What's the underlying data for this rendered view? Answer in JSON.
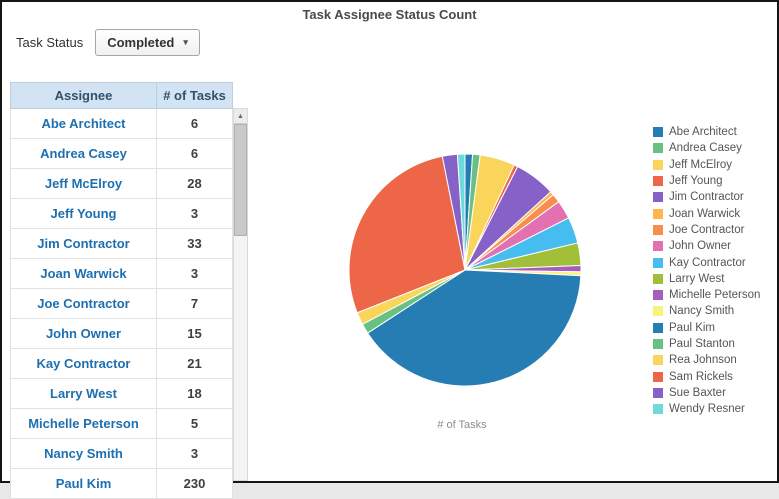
{
  "title": "Task Assignee Status Count",
  "filter": {
    "label": "Task Status",
    "value": "Completed"
  },
  "icons": {
    "dropdown_caret": "▾",
    "scrollbar_up": "▲"
  },
  "table": {
    "columns": [
      "Assignee",
      "# of Tasks"
    ],
    "rows": [
      [
        "Abe Architect",
        "6"
      ],
      [
        "Andrea Casey",
        "6"
      ],
      [
        "Jeff McElroy",
        "28"
      ],
      [
        "Jeff Young",
        "3"
      ],
      [
        "Jim Contractor",
        "33"
      ],
      [
        "Joan Warwick",
        "3"
      ],
      [
        "Joe Contractor",
        "7"
      ],
      [
        "John Owner",
        "15"
      ],
      [
        "Kay Contractor",
        "21"
      ],
      [
        "Larry West",
        "18"
      ],
      [
        "Michelle Peterson",
        "5"
      ],
      [
        "Nancy Smith",
        "3"
      ],
      [
        "Paul Kim",
        "230"
      ]
    ]
  },
  "chart_data": {
    "type": "pie",
    "title": "# of Tasks",
    "legend_position": "right",
    "slices": [
      {
        "label": "Abe Architect",
        "value": 6,
        "color": "#267db3"
      },
      {
        "label": "Andrea Casey",
        "value": 6,
        "color": "#68c182"
      },
      {
        "label": "Jeff McElroy",
        "value": 28,
        "color": "#fad55c"
      },
      {
        "label": "Jeff Young",
        "value": 3,
        "color": "#ed6647"
      },
      {
        "label": "Jim Contractor",
        "value": 33,
        "color": "#8561c8"
      },
      {
        "label": "Joan Warwick",
        "value": 3,
        "color": "#ffb54d"
      },
      {
        "label": "Joe Contractor",
        "value": 7,
        "color": "#f78e4e"
      },
      {
        "label": "John Owner",
        "value": 15,
        "color": "#e371b2"
      },
      {
        "label": "Kay Contractor",
        "value": 21,
        "color": "#47bdef"
      },
      {
        "label": "Larry West",
        "value": 18,
        "color": "#a2bf39"
      },
      {
        "label": "Michelle Peterson",
        "value": 5,
        "color": "#a75dba"
      },
      {
        "label": "Nancy Smith",
        "value": 3,
        "color": "#f7f37b"
      },
      {
        "label": "Paul Kim",
        "value": 230,
        "color": "#267db3"
      },
      {
        "label": "Paul Stanton",
        "value": 8,
        "color": "#68c182"
      },
      {
        "label": "Rea Johnson",
        "value": 10,
        "color": "#fad55c"
      },
      {
        "label": "Sam Rickels",
        "value": 160,
        "color": "#ed6647"
      },
      {
        "label": "Sue Baxter",
        "value": 12,
        "color": "#8561c8"
      },
      {
        "label": "Wendy Resner",
        "value": 6,
        "color": "#6ddbdb"
      }
    ]
  }
}
